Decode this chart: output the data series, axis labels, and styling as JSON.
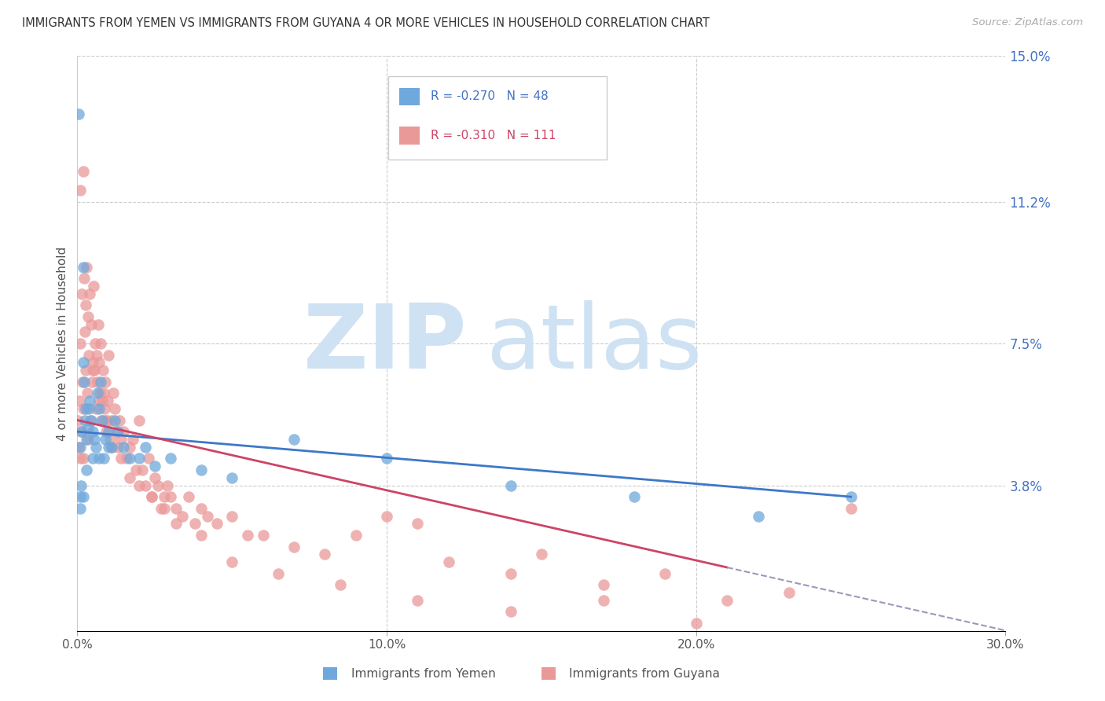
{
  "title": "IMMIGRANTS FROM YEMEN VS IMMIGRANTS FROM GUYANA 4 OR MORE VEHICLES IN HOUSEHOLD CORRELATION CHART",
  "source": "Source: ZipAtlas.com",
  "ylabel": "4 or more Vehicles in Household",
  "xlabel_ticks": [
    "0.0%",
    "10.0%",
    "20.0%",
    "30.0%"
  ],
  "xlabel_vals": [
    0.0,
    10.0,
    20.0,
    30.0
  ],
  "ytick_labels": [
    "3.8%",
    "7.5%",
    "11.2%",
    "15.0%"
  ],
  "ytick_vals": [
    3.8,
    7.5,
    11.2,
    15.0
  ],
  "xlim": [
    0.0,
    30.0
  ],
  "ylim": [
    0.0,
    15.0
  ],
  "legend1_label": "Immigrants from Yemen",
  "legend2_label": "Immigrants from Guyana",
  "legend1_R": "R = -0.270",
  "legend1_N": "N = 48",
  "legend2_R": "R = -0.310",
  "legend2_N": "N = 111",
  "color_yemen": "#6fa8dc",
  "color_guyana": "#ea9999",
  "color_yemen_line": "#3d78c8",
  "color_guyana_line": "#cc4466",
  "color_guyana_dash": "#9999bb",
  "watermark_text": "ZIP",
  "watermark_text2": "atlas",
  "watermark_color": "#cfe2f3",
  "background_color": "#ffffff",
  "yemen_x": [
    0.05,
    0.08,
    0.1,
    0.12,
    0.15,
    0.18,
    0.2,
    0.22,
    0.25,
    0.28,
    0.3,
    0.35,
    0.38,
    0.4,
    0.45,
    0.5,
    0.55,
    0.6,
    0.65,
    0.7,
    0.75,
    0.8,
    0.85,
    0.9,
    1.0,
    1.1,
    1.2,
    1.3,
    1.5,
    1.7,
    2.0,
    2.2,
    2.5,
    3.0,
    4.0,
    5.0,
    7.0,
    10.0,
    14.0,
    18.0,
    22.0,
    25.0,
    0.1,
    0.2,
    0.3,
    0.5,
    0.7,
    1.0
  ],
  "yemen_y": [
    13.5,
    3.5,
    4.8,
    3.8,
    5.2,
    9.5,
    7.0,
    6.5,
    5.5,
    5.8,
    5.0,
    5.3,
    5.8,
    6.0,
    5.5,
    5.2,
    5.0,
    4.8,
    6.2,
    5.8,
    6.5,
    5.5,
    4.5,
    5.0,
    5.2,
    4.8,
    5.5,
    5.2,
    4.8,
    4.5,
    4.5,
    4.8,
    4.3,
    4.5,
    4.2,
    4.0,
    5.0,
    4.5,
    3.8,
    3.5,
    3.0,
    3.5,
    3.2,
    3.5,
    4.2,
    4.5,
    4.5,
    4.8
  ],
  "guyana_x": [
    0.02,
    0.04,
    0.06,
    0.08,
    0.1,
    0.12,
    0.14,
    0.16,
    0.18,
    0.2,
    0.22,
    0.24,
    0.26,
    0.28,
    0.3,
    0.32,
    0.35,
    0.38,
    0.4,
    0.42,
    0.45,
    0.48,
    0.5,
    0.52,
    0.55,
    0.58,
    0.6,
    0.62,
    0.65,
    0.68,
    0.7,
    0.72,
    0.75,
    0.78,
    0.8,
    0.82,
    0.85,
    0.88,
    0.9,
    0.92,
    0.95,
    0.98,
    1.0,
    1.05,
    1.1,
    1.15,
    1.2,
    1.25,
    1.3,
    1.35,
    1.4,
    1.5,
    1.6,
    1.7,
    1.8,
    1.9,
    2.0,
    2.1,
    2.2,
    2.3,
    2.4,
    2.5,
    2.6,
    2.7,
    2.8,
    2.9,
    3.0,
    3.2,
    3.4,
    3.6,
    3.8,
    4.0,
    4.2,
    4.5,
    5.0,
    5.5,
    6.0,
    7.0,
    8.0,
    9.0,
    10.0,
    11.0,
    12.0,
    14.0,
    15.0,
    17.0,
    19.0,
    21.0,
    23.0,
    25.0,
    0.1,
    0.2,
    0.35,
    0.5,
    0.7,
    0.9,
    1.1,
    1.4,
    1.7,
    2.0,
    2.4,
    2.8,
    3.2,
    4.0,
    5.0,
    6.5,
    8.5,
    11.0,
    14.0,
    17.0,
    20.0
  ],
  "guyana_y": [
    5.5,
    4.8,
    6.0,
    7.5,
    11.5,
    5.2,
    8.8,
    6.5,
    4.5,
    12.0,
    9.2,
    7.8,
    8.5,
    6.8,
    9.5,
    6.2,
    8.2,
    7.2,
    8.8,
    5.5,
    8.0,
    6.5,
    7.0,
    9.0,
    6.8,
    7.5,
    5.8,
    7.2,
    6.5,
    8.0,
    7.0,
    6.2,
    7.5,
    5.5,
    6.0,
    6.8,
    6.2,
    5.8,
    6.5,
    5.2,
    5.5,
    6.0,
    7.2,
    5.0,
    5.5,
    6.2,
    5.8,
    5.2,
    4.8,
    5.5,
    5.0,
    5.2,
    4.5,
    4.8,
    5.0,
    4.2,
    5.5,
    4.2,
    3.8,
    4.5,
    3.5,
    4.0,
    3.8,
    3.2,
    3.5,
    3.8,
    3.5,
    3.2,
    3.0,
    3.5,
    2.8,
    3.2,
    3.0,
    2.8,
    3.0,
    2.5,
    2.5,
    2.2,
    2.0,
    2.5,
    3.0,
    2.8,
    1.8,
    1.5,
    2.0,
    1.2,
    1.5,
    0.8,
    1.0,
    3.2,
    4.5,
    5.8,
    5.0,
    6.8,
    6.0,
    5.5,
    4.8,
    4.5,
    4.0,
    3.8,
    3.5,
    3.2,
    2.8,
    2.5,
    1.8,
    1.5,
    1.2,
    0.8,
    0.5,
    0.8,
    0.2
  ]
}
